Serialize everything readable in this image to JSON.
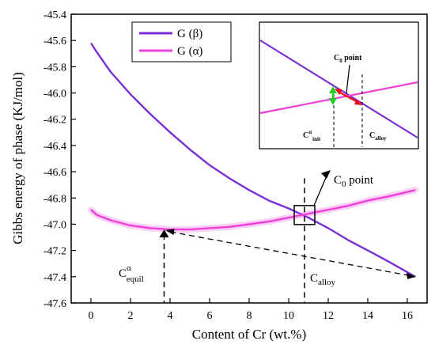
{
  "chart_data": {
    "type": "line",
    "xlabel": "Content of Cr (wt.%)",
    "ylabel": "Gibbs energy of phase (KJ/mol)",
    "xlim": [
      -1,
      17
    ],
    "ylim": [
      -47.6,
      -45.4
    ],
    "xticks": [
      0,
      2,
      4,
      6,
      8,
      10,
      12,
      14,
      16
    ],
    "yticks": [
      -47.6,
      -47.4,
      -47.2,
      -47.0,
      -46.8,
      -46.6,
      -46.4,
      -46.2,
      -46.0,
      -45.8,
      -45.6,
      -45.4
    ],
    "legend_position": "top-left",
    "series": [
      {
        "name": "G (β)",
        "color": "#7b2fd4",
        "x": [
          0,
          0.3,
          1,
          2,
          3,
          4,
          5,
          6,
          7,
          8,
          9,
          10,
          11,
          12,
          13,
          14,
          15,
          16.4
        ],
        "y": [
          -45.62,
          -45.69,
          -45.84,
          -46.01,
          -46.16,
          -46.3,
          -46.43,
          -46.55,
          -46.65,
          -46.74,
          -46.82,
          -46.88,
          -46.95,
          -47.03,
          -47.12,
          -47.2,
          -47.28,
          -47.4
        ]
      },
      {
        "name": "G (α)",
        "color": "#ee3fd8",
        "x": [
          0,
          0.3,
          1,
          2,
          3,
          4,
          5,
          6,
          7,
          8,
          9,
          10,
          11,
          12,
          13,
          14,
          15,
          16.4
        ],
        "y": [
          -46.89,
          -46.93,
          -46.97,
          -47.01,
          -47.03,
          -47.04,
          -47.04,
          -47.03,
          -47.02,
          -47.0,
          -46.98,
          -46.95,
          -46.92,
          -46.89,
          -46.86,
          -46.82,
          -46.79,
          -46.74
        ]
      }
    ],
    "annotations": {
      "c0_label": "C",
      "c0_sub": "0",
      "c0_suffix": " point",
      "c0_x": 10.8,
      "c0_y": -46.93,
      "calloy_label": "C",
      "calloy_sub": "alloy",
      "calloy_x": 10.8,
      "cequil_label": "C",
      "cequil_sup": "α",
      "cequil_sub": "equil",
      "cequil_x": 3.7,
      "cequil_y": -47.04,
      "arrow_end_x": 16.4,
      "arrow_end_y": -47.4
    },
    "inset": {
      "c0_label": "C",
      "c0_sub": "0",
      "c0_suffix": " point",
      "cinit_label": "C",
      "cinit_sup": "α",
      "cinit_sub": "init",
      "calloy_label": "C",
      "calloy_sub": "alloy",
      "green_color": "#22cc22",
      "red_color": "#ee1111"
    }
  }
}
